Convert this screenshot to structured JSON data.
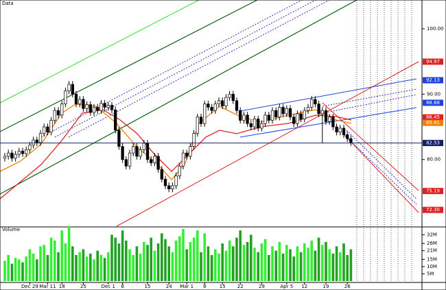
{
  "chart_data": {
    "type": "candlestick",
    "title": "Data",
    "volume_title": "Volume",
    "categories": [
      null,
      null,
      null,
      null,
      null,
      null,
      null,
      "Dec 29",
      null,
      null,
      null,
      null,
      "Mar 11",
      null,
      null,
      null,
      "18",
      null,
      null,
      null,
      null,
      null,
      "25",
      null,
      null,
      null,
      null,
      null,
      null,
      "Dec 1",
      null,
      null,
      null,
      "8",
      null,
      null,
      null,
      null,
      null,
      null,
      "15",
      null,
      null,
      null,
      null,
      null,
      "24",
      null,
      null,
      null,
      null,
      "Mar 1",
      null,
      null,
      null,
      null,
      "8",
      null,
      null,
      null,
      null,
      "15",
      null,
      null,
      null,
      null,
      "22",
      null,
      null,
      null,
      null,
      null,
      "29",
      null,
      null,
      null,
      null,
      null,
      null,
      "Apr 5",
      null,
      null,
      null,
      null,
      "12",
      null,
      null,
      null,
      null,
      null,
      "19",
      null,
      null,
      null,
      null,
      null,
      "26",
      null
    ],
    "open": [
      80.2,
      80.5,
      81.0,
      80.2,
      80.8,
      81.3,
      80.9,
      81.5,
      82.2,
      83.0,
      82.6,
      84.0,
      85.0,
      84.2,
      86.0,
      87.5,
      86.8,
      88.5,
      90.5,
      91.5,
      90.0,
      88.5,
      89.2,
      87.8,
      88.4,
      87.2,
      88.0,
      87.5,
      88.6,
      88.0,
      88.3,
      87.6,
      84.5,
      82.0,
      80.0,
      79.0,
      81.0,
      82.0,
      80.5,
      81.5,
      82.5,
      80.0,
      79.5,
      80.5,
      78.5,
      77.0,
      76.0,
      75.5,
      76.0,
      77.5,
      79.0,
      81.0,
      80.5,
      82.0,
      84.0,
      86.5,
      85.5,
      88.5,
      88.0,
      87.5,
      88.5,
      89.0,
      88.2,
      89.5,
      90.0,
      89.0,
      87.5,
      86.0,
      86.8,
      85.5,
      85.0,
      86.2,
      84.8,
      85.5,
      86.8,
      86.0,
      87.5,
      86.5,
      88.0,
      87.0,
      87.8,
      86.5,
      85.5,
      87.0,
      86.2,
      87.5,
      88.0,
      89.2,
      88.5,
      87.0,
      87.5,
      85.8,
      86.5,
      85.0,
      84.2,
      84.8,
      83.8,
      83.2
    ],
    "high": [
      81.0,
      81.5,
      81.5,
      81.3,
      81.8,
      81.8,
      82.0,
      82.7,
      83.5,
      83.5,
      84.5,
      85.5,
      85.5,
      86.5,
      88.0,
      88.0,
      89.0,
      91.0,
      92.0,
      92.0,
      90.5,
      89.7,
      89.7,
      88.9,
      88.9,
      88.5,
      88.5,
      89.1,
      89.1,
      88.8,
      88.8,
      88.1,
      85.0,
      82.5,
      80.5,
      81.5,
      82.5,
      82.5,
      82.0,
      83.0,
      83.0,
      80.5,
      81.0,
      81.0,
      79.0,
      77.5,
      76.5,
      76.5,
      78.0,
      79.5,
      81.5,
      81.5,
      82.5,
      84.5,
      87.0,
      87.0,
      89.0,
      89.0,
      88.5,
      89.0,
      89.5,
      89.5,
      90.0,
      90.5,
      90.5,
      89.5,
      88.0,
      87.3,
      87.3,
      86.0,
      86.7,
      86.7,
      86.0,
      87.3,
      87.3,
      88.0,
      88.0,
      88.5,
      88.5,
      88.3,
      88.3,
      87.0,
      87.5,
      87.5,
      88.0,
      88.5,
      89.7,
      89.7,
      89.0,
      88.0,
      88.0,
      87.0,
      87.0,
      85.5,
      85.3,
      85.3,
      84.3,
      83.7
    ],
    "low": [
      79.7,
      80.0,
      79.7,
      79.7,
      80.3,
      80.4,
      80.4,
      81.0,
      81.7,
      82.1,
      82.1,
      83.5,
      83.7,
      83.7,
      85.5,
      86.3,
      86.3,
      88.0,
      90.0,
      89.5,
      88.0,
      88.0,
      87.3,
      87.3,
      86.7,
      86.7,
      87.0,
      87.0,
      87.5,
      87.5,
      87.1,
      84.0,
      81.5,
      79.5,
      78.5,
      78.5,
      80.5,
      80.0,
      80.0,
      81.0,
      79.5,
      79.0,
      79.0,
      78.0,
      76.5,
      75.5,
      75.0,
      75.0,
      75.5,
      77.0,
      78.5,
      80.0,
      80.0,
      81.5,
      83.5,
      85.0,
      85.0,
      87.5,
      87.0,
      87.0,
      88.0,
      87.7,
      87.7,
      89.0,
      88.5,
      87.0,
      85.5,
      85.5,
      85.0,
      84.5,
      84.5,
      84.3,
      84.3,
      85.0,
      85.5,
      85.5,
      86.0,
      86.0,
      86.5,
      86.5,
      86.0,
      85.0,
      85.0,
      85.7,
      85.7,
      87.0,
      87.5,
      88.0,
      86.5,
      82.5,
      85.3,
      85.3,
      84.5,
      83.7,
      83.7,
      83.3,
      82.7,
      82.1
    ],
    "close": [
      80.5,
      81.0,
      80.2,
      80.8,
      81.3,
      80.9,
      81.5,
      82.2,
      83.0,
      82.6,
      84.0,
      85.0,
      84.2,
      86.0,
      87.5,
      86.8,
      88.5,
      90.5,
      91.5,
      90.0,
      88.5,
      89.2,
      87.8,
      88.4,
      87.2,
      88.0,
      87.5,
      88.6,
      88.0,
      88.3,
      87.6,
      84.5,
      82.0,
      80.0,
      79.0,
      81.0,
      82.0,
      80.5,
      81.5,
      82.5,
      80.0,
      79.5,
      80.5,
      78.5,
      77.0,
      76.0,
      75.5,
      76.0,
      77.5,
      79.0,
      81.0,
      80.5,
      82.0,
      84.0,
      86.5,
      85.5,
      88.5,
      88.0,
      87.5,
      88.5,
      89.0,
      88.2,
      89.5,
      90.0,
      89.0,
      87.5,
      86.0,
      86.8,
      85.5,
      85.0,
      86.2,
      84.8,
      85.5,
      86.8,
      86.0,
      87.5,
      86.5,
      88.0,
      87.0,
      87.8,
      86.5,
      85.5,
      87.0,
      86.2,
      87.5,
      88.0,
      89.2,
      88.5,
      87.0,
      87.5,
      85.8,
      86.5,
      85.0,
      84.2,
      84.8,
      83.8,
      83.2,
      82.6
    ],
    "volume": [
      14,
      18,
      12,
      16,
      15,
      13,
      17,
      22,
      19,
      15,
      24,
      25,
      18,
      30,
      28,
      20,
      35,
      26,
      38,
      24,
      18,
      20,
      22,
      17,
      19,
      15,
      21,
      18,
      16,
      20,
      32,
      30,
      26,
      35,
      28,
      22,
      18,
      24,
      19,
      27,
      25,
      30,
      21,
      26,
      33,
      29,
      24,
      20,
      28,
      31,
      36,
      22,
      27,
      30,
      35,
      20,
      33,
      24,
      18,
      22,
      19,
      26,
      21,
      28,
      24,
      30,
      35,
      25,
      27,
      32,
      23,
      20,
      26,
      29,
      18,
      24,
      21,
      27,
      19,
      25,
      22,
      17,
      24,
      20,
      26,
      23,
      28,
      21,
      30,
      25,
      27,
      22,
      19,
      24,
      20,
      26,
      18,
      22
    ],
    "ylim": [
      104.4,
      69.8
    ],
    "yticks": [
      {
        "value": 100,
        "label": "100.00"
      },
      {
        "value": 90,
        "label": "90.00"
      },
      {
        "value": 80,
        "label": "80.00"
      }
    ],
    "vlim": [
      0,
      36
    ],
    "vticks": [
      {
        "value": 32,
        "label": "32M"
      },
      {
        "value": 26,
        "label": "26M"
      },
      {
        "value": 21,
        "label": "21M"
      },
      {
        "value": 15,
        "label": "15M"
      },
      {
        "value": 10,
        "label": "10M"
      },
      {
        "value": 5,
        "label": "5M"
      }
    ],
    "price_markers": [
      {
        "value": 94.97,
        "label": "94.97",
        "color": "#e02020"
      },
      {
        "value": 92.13,
        "label": "92.13",
        "color": "#2040e0"
      },
      {
        "value": 88.68,
        "label": "88.68",
        "color": "#2040e0"
      },
      {
        "value": 86.45,
        "label": "86.45",
        "color": "#e02020"
      },
      {
        "value": 85.61,
        "label": "85.61",
        "color": "#f08000"
      },
      {
        "value": 82.53,
        "label": "82.53",
        "color": "#102060"
      },
      {
        "value": 75.19,
        "label": "75.19",
        "color": "#e02020"
      },
      {
        "value": 72.3,
        "label": "72.30",
        "color": "#e02020"
      }
    ],
    "up_color": "#ffffff",
    "down_color": "#000000",
    "volume_up_color": "#33ee33",
    "volume_down_color": "#22a022"
  }
}
